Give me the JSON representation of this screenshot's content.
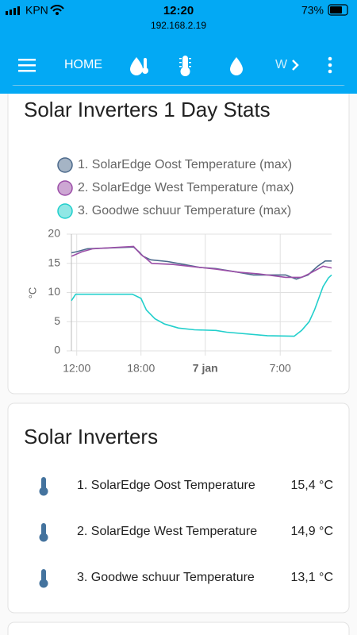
{
  "status_bar": {
    "carrier": "KPN",
    "time": "12:20",
    "battery": "73%",
    "url": "192.168.2.19"
  },
  "nav": {
    "home": "HOME",
    "partial_tab": "W"
  },
  "chart_card": {
    "title": "Solar Inverters 1 Day Stats"
  },
  "chart_data": {
    "type": "line",
    "ylabel": "°C",
    "grid": true,
    "xlim": [
      11.5,
      35.8
    ],
    "ylim": [
      0,
      20
    ],
    "xticks": [
      {
        "value": 12,
        "label": "12:00"
      },
      {
        "value": 18,
        "label": "18:00"
      },
      {
        "value": 24,
        "label": "7 jan"
      },
      {
        "value": 31,
        "label": "7:00"
      }
    ],
    "yticks": [
      0,
      5,
      10,
      15,
      20
    ],
    "series": [
      {
        "name": "1. SolarEdge Oost Temperature (max)",
        "color": "#4c6a8c",
        "x": [
          11.5,
          12,
          13,
          17.3,
          17.8,
          18.2,
          18.9,
          20.5,
          22,
          23.5,
          25,
          27,
          28.5,
          31.5,
          32.5,
          33.6,
          34.5,
          35.2,
          35.8
        ],
        "values": [
          16.8,
          17,
          17.5,
          17.8,
          17,
          16.2,
          15.6,
          15.3,
          14.8,
          14.3,
          14.1,
          13.5,
          13,
          13,
          12.3,
          13,
          14.5,
          15.4,
          15.4
        ]
      },
      {
        "name": "2. SolarEdge West Temperature (max)",
        "color": "#9c4fa8",
        "x": [
          11.5,
          12.5,
          13.5,
          17.3,
          18,
          18.5,
          19,
          21,
          23.5,
          25,
          27,
          29,
          31.5,
          33,
          33.8,
          34.5,
          35,
          35.8
        ],
        "values": [
          16.2,
          17,
          17.5,
          17.9,
          16.5,
          15.8,
          15,
          14.8,
          14.3,
          14,
          13.5,
          13.2,
          12.6,
          12.6,
          13.3,
          14,
          14.5,
          14.2
        ]
      },
      {
        "name": "3. Goodwe schuur Temperature (max)",
        "color": "#22cfcc",
        "x": [
          11.5,
          11.9,
          17.2,
          18,
          18.5,
          19.3,
          20.2,
          21.5,
          23,
          25,
          26,
          29.8,
          32.3,
          33,
          33.7,
          34.2,
          34.6,
          35,
          35.5,
          35.8
        ],
        "values": [
          8.6,
          9.7,
          9.7,
          9,
          7,
          5.5,
          4.6,
          3.9,
          3.6,
          3.5,
          3.2,
          2.6,
          2.5,
          3.5,
          5,
          7,
          9,
          11,
          12.5,
          13
        ]
      }
    ]
  },
  "entities_card": {
    "title": "Solar Inverters",
    "rows": [
      {
        "name": "1. SolarEdge Oost Temperature",
        "state": "15,4 °C"
      },
      {
        "name": "2. SolarEdge West Temperature",
        "state": "14,9 °C"
      },
      {
        "name": "3. Goodwe schuur Temperature",
        "state": "13,1 °C"
      }
    ]
  }
}
